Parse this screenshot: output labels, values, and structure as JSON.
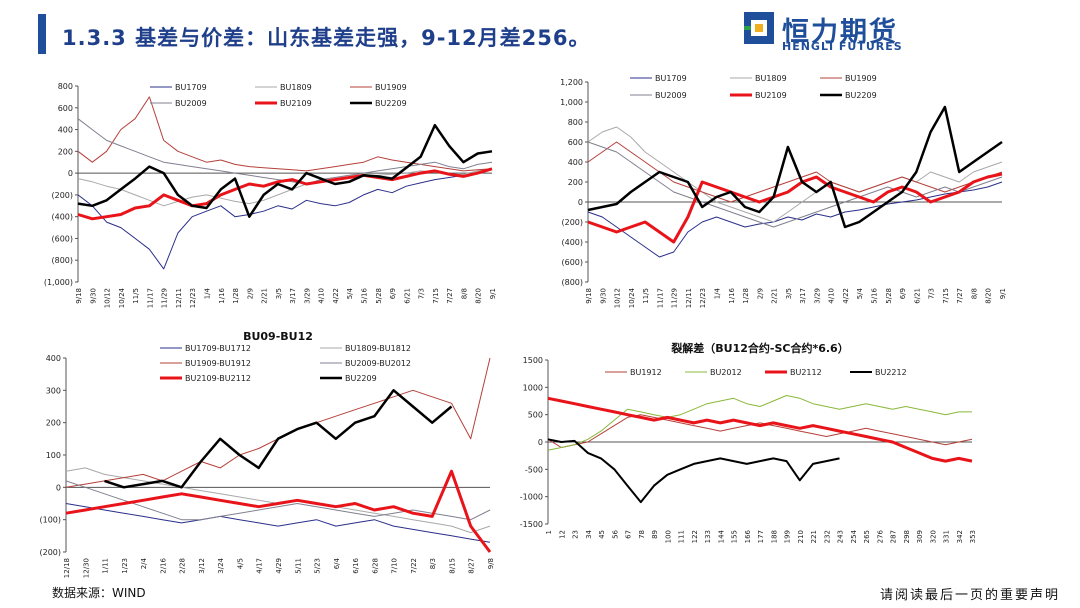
{
  "header": {
    "title": "1.3.3 基差与价差：山东基差走强，9-12月差256。"
  },
  "logo": {
    "name": "恒力期货",
    "name_en": "HENGLI FUTURES"
  },
  "footer": {
    "source": "数据来源：WIND",
    "disclaimer": "请阅读最后一页的重要声明"
  },
  "chart_data": [
    {
      "type": "line",
      "title": "",
      "ylim": [
        -1000,
        800
      ],
      "yticks": [
        "800",
        "600",
        "400",
        "200",
        "0",
        "(200)",
        "(400)",
        "(600)",
        "(800)",
        "(1,000)"
      ],
      "xticks": [
        "9/18",
        "9/30",
        "10/12",
        "10/24",
        "11/5",
        "11/17",
        "11/29",
        "12/11",
        "12/23",
        "1/4",
        "1/16",
        "1/28",
        "2/9",
        "2/21",
        "3/5",
        "3/17",
        "3/29",
        "4/10",
        "4/22",
        "5/4",
        "5/16",
        "5/28",
        "6/9",
        "6/21",
        "7/3",
        "7/15",
        "7/27",
        "8/8",
        "8/20",
        "9/1"
      ],
      "series": [
        {
          "name": "BU1709",
          "color": "#2b2f8a",
          "width": 1,
          "values": [
            -200,
            -300,
            -450,
            -500,
            -600,
            -700,
            -880,
            -550,
            -400,
            -350,
            -300,
            -400,
            -380,
            -350,
            -300,
            -330,
            -250,
            -280,
            -300,
            -270,
            -200,
            -150,
            -180,
            -120,
            -90,
            -60,
            -40,
            -20,
            0,
            30
          ]
        },
        {
          "name": "BU1809",
          "color": "#a9a9a9",
          "width": 1,
          "values": [
            -50,
            -80,
            -120,
            -150,
            -200,
            -250,
            -300,
            -260,
            -220,
            -200,
            -230,
            -260,
            -280,
            -250,
            -200,
            -150,
            -100,
            -80,
            -60,
            -40,
            -30,
            -20,
            -10,
            0,
            20,
            10,
            -20,
            -10,
            20,
            40
          ]
        },
        {
          "name": "BU1909",
          "color": "#b5403a",
          "width": 1,
          "values": [
            200,
            100,
            200,
            400,
            500,
            700,
            300,
            200,
            150,
            100,
            120,
            80,
            60,
            50,
            40,
            30,
            20,
            40,
            60,
            80,
            100,
            150,
            120,
            100,
            80,
            60,
            40,
            20,
            30,
            40
          ]
        },
        {
          "name": "BU2009",
          "color": "#808090",
          "width": 1,
          "values": [
            500,
            400,
            300,
            250,
            200,
            150,
            100,
            80,
            60,
            40,
            20,
            0,
            -20,
            -40,
            -60,
            -80,
            -100,
            -60,
            -40,
            -20,
            0,
            20,
            40,
            60,
            80,
            100,
            60,
            40,
            80,
            100
          ]
        },
        {
          "name": "BU2109",
          "color": "#e8141a",
          "width": 3,
          "values": [
            -380,
            -420,
            -400,
            -380,
            -320,
            -300,
            -200,
            -250,
            -300,
            -280,
            -200,
            -150,
            -100,
            -120,
            -80,
            -60,
            -100,
            -80,
            -60,
            -40,
            -20,
            -40,
            -60,
            -30,
            0,
            20,
            -10,
            -30,
            0,
            40
          ]
        },
        {
          "name": "BU2209",
          "color": "#000000",
          "width": 2.5,
          "values": [
            -280,
            -300,
            -250,
            -150,
            -50,
            60,
            0,
            -200,
            -300,
            -320,
            -150,
            -50,
            -400,
            -200,
            -100,
            -150,
            0,
            -50,
            -100,
            -80,
            -20,
            -30,
            -50,
            50,
            150,
            440,
            250,
            100,
            180,
            200
          ]
        }
      ]
    },
    {
      "type": "line",
      "title": "",
      "ylim": [
        -800,
        1200
      ],
      "yticks": [
        "1,200",
        "1,000",
        "800",
        "600",
        "400",
        "200",
        "0",
        "(200)",
        "(400)",
        "(600)",
        "(800)"
      ],
      "xticks": [
        "9/18",
        "9/30",
        "10/12",
        "10/24",
        "11/5",
        "11/17",
        "11/29",
        "12/11",
        "12/23",
        "1/4",
        "1/16",
        "1/28",
        "2/9",
        "2/21",
        "3/5",
        "3/17",
        "3/29",
        "4/10",
        "4/22",
        "5/4",
        "5/16",
        "5/28",
        "6/9",
        "6/21",
        "7/3",
        "7/15",
        "7/27",
        "8/8",
        "8/20",
        "9/1"
      ],
      "series": [
        {
          "name": "BU1709",
          "color": "#2b2f8a",
          "width": 1,
          "values": [
            -100,
            -150,
            -250,
            -350,
            -450,
            -550,
            -500,
            -300,
            -200,
            -150,
            -200,
            -250,
            -220,
            -200,
            -150,
            -180,
            -120,
            -150,
            -100,
            -80,
            -50,
            -20,
            0,
            20,
            50,
            80,
            100,
            120,
            150,
            200
          ]
        },
        {
          "name": "BU1809",
          "color": "#a9a9a9",
          "width": 1,
          "values": [
            600,
            700,
            750,
            650,
            500,
            400,
            300,
            200,
            100,
            0,
            -50,
            -100,
            -150,
            -200,
            -100,
            0,
            100,
            200,
            150,
            100,
            150,
            200,
            250,
            200,
            300,
            250,
            200,
            300,
            350,
            400
          ]
        },
        {
          "name": "BU1909",
          "color": "#b5403a",
          "width": 1,
          "values": [
            400,
            500,
            600,
            500,
            400,
            300,
            200,
            150,
            100,
            50,
            0,
            50,
            100,
            150,
            200,
            250,
            300,
            200,
            150,
            100,
            150,
            200,
            250,
            200,
            150,
            100,
            150,
            200,
            250,
            300
          ]
        },
        {
          "name": "BU2009",
          "color": "#808090",
          "width": 1,
          "values": [
            600,
            550,
            500,
            400,
            300,
            200,
            100,
            50,
            0,
            -50,
            -100,
            -150,
            -200,
            -250,
            -200,
            -150,
            -100,
            -50,
            0,
            50,
            100,
            150,
            100,
            50,
            100,
            150,
            100,
            150,
            200,
            250
          ]
        },
        {
          "name": "BU2109",
          "color": "#e8141a",
          "width": 3,
          "values": [
            -200,
            -250,
            -300,
            -250,
            -200,
            -300,
            -400,
            -150,
            200,
            150,
            100,
            50,
            0,
            50,
            100,
            200,
            250,
            150,
            100,
            50,
            0,
            100,
            150,
            100,
            0,
            50,
            100,
            200,
            250,
            280
          ]
        },
        {
          "name": "BU2209",
          "color": "#000000",
          "width": 2.5,
          "values": [
            -80,
            -50,
            -20,
            100,
            200,
            300,
            250,
            200,
            -50,
            50,
            100,
            -50,
            -100,
            50,
            550,
            200,
            100,
            200,
            -250,
            -200,
            -100,
            0,
            100,
            300,
            700,
            950,
            300,
            400,
            500,
            600
          ]
        }
      ]
    },
    {
      "type": "line",
      "title": "BU09-BU12",
      "ylim": [
        -200,
        400
      ],
      "yticks": [
        "400",
        "300",
        "200",
        "100",
        "0",
        "(100)",
        "(200)"
      ],
      "xticks": [
        "12/18",
        "12/30",
        "1/11",
        "1/23",
        "2/4",
        "2/16",
        "2/28",
        "3/12",
        "3/24",
        "4/5",
        "4/17",
        "4/29",
        "5/11",
        "5/23",
        "6/4",
        "6/16",
        "6/28",
        "7/10",
        "7/22",
        "8/3",
        "8/15",
        "8/27",
        "9/8"
      ],
      "series": [
        {
          "name": "BU1709-BU1712",
          "color": "#2b2f8a",
          "width": 1,
          "values": [
            -50,
            -60,
            -70,
            -80,
            -90,
            -100,
            -110,
            -100,
            -90,
            -100,
            -110,
            -120,
            -110,
            -100,
            -120,
            -110,
            -100,
            -120,
            -130,
            -140,
            -150,
            -160,
            -170
          ]
        },
        {
          "name": "BU1809-BU1812",
          "color": "#a9a9a9",
          "width": 1,
          "values": [
            50,
            60,
            40,
            30,
            20,
            10,
            0,
            -10,
            -20,
            -30,
            -40,
            -50,
            -40,
            -50,
            -60,
            -70,
            -80,
            -90,
            -100,
            -110,
            -120,
            -140,
            -120
          ]
        },
        {
          "name": "BU1909-BU1912",
          "color": "#b5403a",
          "width": 1,
          "values": [
            0,
            10,
            20,
            30,
            40,
            20,
            50,
            80,
            60,
            100,
            120,
            150,
            180,
            200,
            220,
            240,
            260,
            280,
            300,
            280,
            260,
            150,
            400
          ]
        },
        {
          "name": "BU2009-BU2012",
          "color": "#808090",
          "width": 1,
          "values": [
            20,
            0,
            -20,
            -40,
            -60,
            -80,
            -100,
            -100,
            -90,
            -80,
            -70,
            -60,
            -50,
            -60,
            -70,
            -80,
            -90,
            -80,
            -70,
            -80,
            -90,
            -100,
            -70
          ]
        },
        {
          "name": "BU2109-BU2112",
          "color": "#e8141a",
          "width": 3,
          "values": [
            -80,
            -70,
            -60,
            -50,
            -40,
            -30,
            -20,
            -30,
            -40,
            -50,
            -60,
            -50,
            -40,
            -50,
            -60,
            -50,
            -70,
            -60,
            -80,
            -90,
            50,
            -120,
            -200
          ]
        },
        {
          "name": "BU2209",
          "color": "#000000",
          "width": 2.5,
          "values": [
            null,
            null,
            20,
            0,
            10,
            20,
            0,
            80,
            150,
            100,
            60,
            150,
            180,
            200,
            150,
            200,
            220,
            300,
            250,
            200,
            250,
            null,
            null
          ]
        }
      ]
    },
    {
      "type": "line",
      "title": "裂解差（BU12合约-SC合约*6.6）",
      "ylim": [
        -1500,
        1500
      ],
      "yticks": [
        "1500",
        "1000",
        "500",
        "0",
        "-500",
        "-1000",
        "-1500"
      ],
      "xticks": [
        "1",
        "12",
        "23",
        "34",
        "45",
        "56",
        "67",
        "78",
        "89",
        "100",
        "111",
        "122",
        "133",
        "144",
        "155",
        "166",
        "177",
        "188",
        "199",
        "210",
        "221",
        "232",
        "243",
        "254",
        "265",
        "276",
        "287",
        "298",
        "309",
        "320",
        "331",
        "342",
        "353"
      ],
      "series": [
        {
          "name": "BU1912",
          "color": "#b5403a",
          "width": 1,
          "values": [
            50,
            -100,
            -50,
            0,
            150,
            300,
            450,
            500,
            450,
            400,
            350,
            300,
            250,
            200,
            250,
            300,
            350,
            300,
            250,
            200,
            150,
            100,
            150,
            200,
            250,
            200,
            150,
            100,
            50,
            0,
            -50,
            0,
            50
          ]
        },
        {
          "name": "BU2012",
          "color": "#8ab83a",
          "width": 1,
          "values": [
            -150,
            -100,
            -50,
            50,
            200,
            400,
            600,
            550,
            500,
            450,
            500,
            600,
            700,
            750,
            800,
            700,
            650,
            750,
            850,
            800,
            700,
            650,
            600,
            650,
            700,
            650,
            600,
            650,
            600,
            550,
            500,
            550,
            550
          ]
        },
        {
          "name": "BU2112",
          "color": "#e8141a",
          "width": 3,
          "values": [
            800,
            750,
            700,
            650,
            600,
            550,
            500,
            450,
            400,
            450,
            400,
            350,
            400,
            350,
            400,
            350,
            300,
            350,
            300,
            250,
            300,
            250,
            200,
            150,
            100,
            50,
            0,
            -100,
            -200,
            -300,
            -350,
            -300,
            -350
          ]
        },
        {
          "name": "BU2212",
          "color": "#000000",
          "width": 2,
          "values": [
            50,
            0,
            20,
            -200,
            -300,
            -500,
            -800,
            -1100,
            -800,
            -600,
            -500,
            -400,
            -350,
            -300,
            -350,
            -400,
            -350,
            -300,
            -350,
            -700,
            -400,
            -350,
            -300,
            null,
            null,
            null,
            null,
            null,
            null,
            null,
            null,
            null,
            null
          ]
        }
      ]
    }
  ]
}
